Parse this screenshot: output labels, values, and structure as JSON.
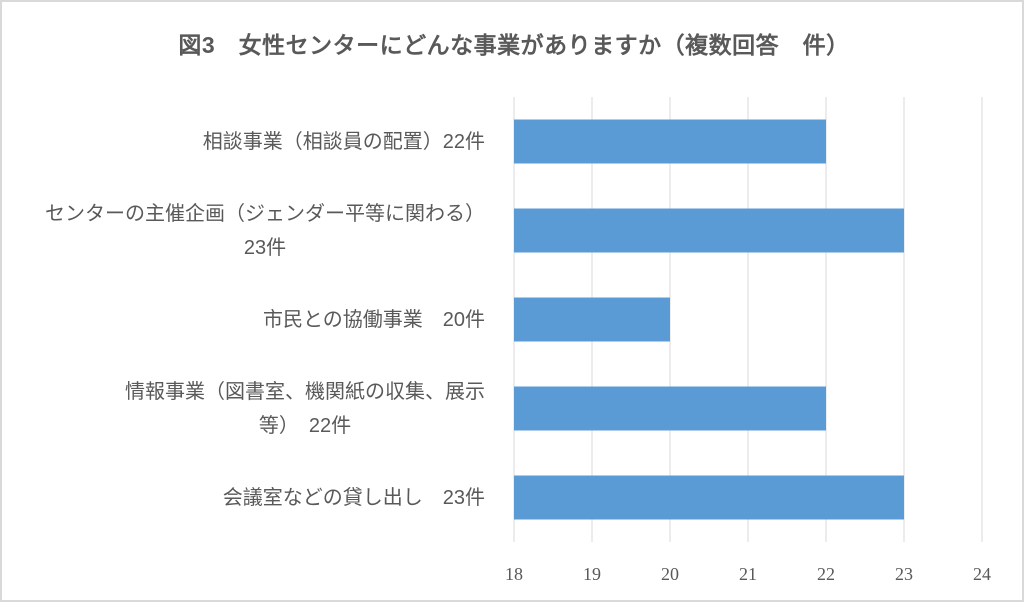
{
  "chart_data": {
    "type": "bar",
    "orientation": "horizontal",
    "title": "図3　女性センターにどんな事業がありますか（複数回答　件）",
    "categories": [
      [
        "相談事業（相談員の配置）22件"
      ],
      [
        "センターの主催企画（ジェンダー平等に関わる）",
        "23件"
      ],
      [
        "市民との協働事業　20件"
      ],
      [
        "情報事業（図書室、機関紙の収集、展示",
        "等）　22件"
      ],
      [
        "会議室などの貸し出し　23件"
      ]
    ],
    "values": [
      22,
      23,
      20,
      22,
      23
    ],
    "xlim": [
      18,
      24
    ],
    "xticks": [
      "18",
      "19",
      "20",
      "21",
      "22",
      "23",
      "24"
    ],
    "xlabel": "",
    "ylabel": "",
    "grid": "vertical",
    "legend": "none",
    "bar_color": "#5b9bd5",
    "grid_color": "#d9d9d9"
  }
}
